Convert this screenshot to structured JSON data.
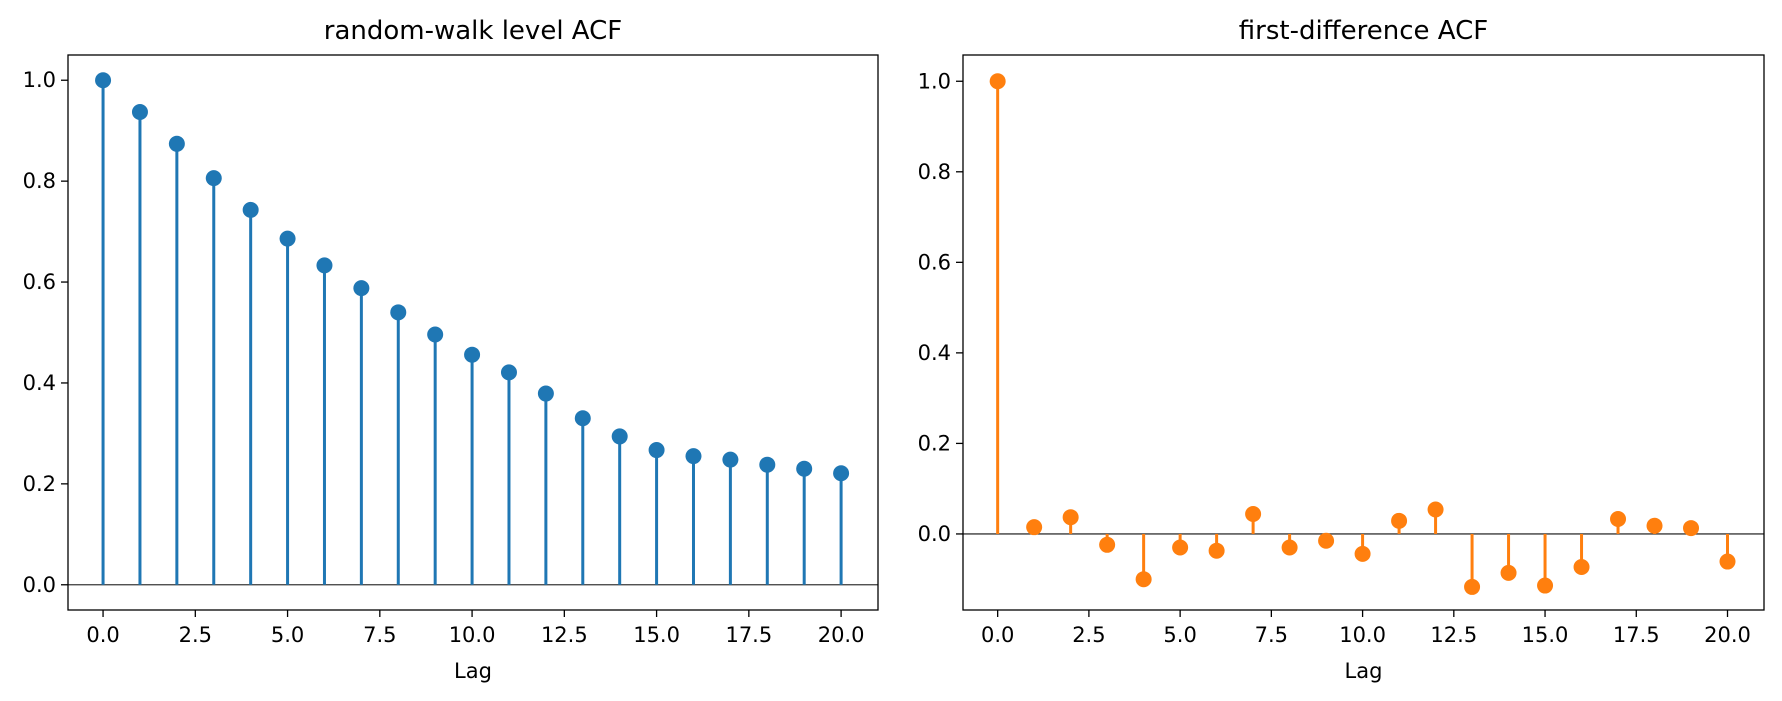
{
  "chart_data": [
    {
      "type": "stem",
      "title": "random-walk level ACF",
      "xlabel": "Lag",
      "ylabel": "",
      "color": "#1f77b4",
      "x": [
        0,
        1,
        2,
        3,
        4,
        5,
        6,
        7,
        8,
        9,
        10,
        11,
        12,
        13,
        14,
        15,
        16,
        17,
        18,
        19,
        20
      ],
      "values": [
        1.0,
        0.937,
        0.874,
        0.806,
        0.743,
        0.686,
        0.633,
        0.588,
        0.54,
        0.496,
        0.456,
        0.421,
        0.379,
        0.33,
        0.294,
        0.267,
        0.255,
        0.248,
        0.238,
        0.23,
        0.221
      ],
      "xlim": [
        -0.95,
        21.0
      ],
      "ylim": [
        -0.05,
        1.05
      ],
      "xticks": [
        0.0,
        2.5,
        5.0,
        7.5,
        10.0,
        12.5,
        15.0,
        17.5,
        20.0
      ],
      "xtick_labels": [
        "0.0",
        "2.5",
        "5.0",
        "7.5",
        "10.0",
        "12.5",
        "15.0",
        "17.5",
        "20.0"
      ],
      "yticks": [
        0.0,
        0.2,
        0.4,
        0.6,
        0.8,
        1.0
      ],
      "ytick_labels": [
        "0.0",
        "0.2",
        "0.4",
        "0.6",
        "0.8",
        "1.0"
      ],
      "baseline": 0,
      "grid": false
    },
    {
      "type": "stem",
      "title": "first-difference ACF",
      "xlabel": "Lag",
      "ylabel": "",
      "color": "#ff7f0e",
      "x": [
        0,
        1,
        2,
        3,
        4,
        5,
        6,
        7,
        8,
        9,
        10,
        11,
        12,
        13,
        14,
        15,
        16,
        17,
        18,
        19,
        20
      ],
      "values": [
        1.0,
        0.015,
        0.037,
        -0.024,
        -0.1,
        -0.03,
        -0.037,
        0.044,
        -0.03,
        -0.015,
        -0.044,
        0.029,
        0.054,
        -0.117,
        -0.086,
        -0.114,
        -0.073,
        0.033,
        0.018,
        0.013,
        -0.061
      ],
      "xlim": [
        -0.95,
        21.0
      ],
      "ylim": [
        -0.168,
        1.058
      ],
      "xticks": [
        0.0,
        2.5,
        5.0,
        7.5,
        10.0,
        12.5,
        15.0,
        17.5,
        20.0
      ],
      "xtick_labels": [
        "0.0",
        "2.5",
        "5.0",
        "7.5",
        "10.0",
        "12.5",
        "15.0",
        "17.5",
        "20.0"
      ],
      "yticks": [
        0.0,
        0.2,
        0.4,
        0.6,
        0.8,
        1.0
      ],
      "ytick_labels": [
        "0.0",
        "0.2",
        "0.4",
        "0.6",
        "0.8",
        "1.0"
      ],
      "baseline": 0,
      "grid": false
    }
  ]
}
